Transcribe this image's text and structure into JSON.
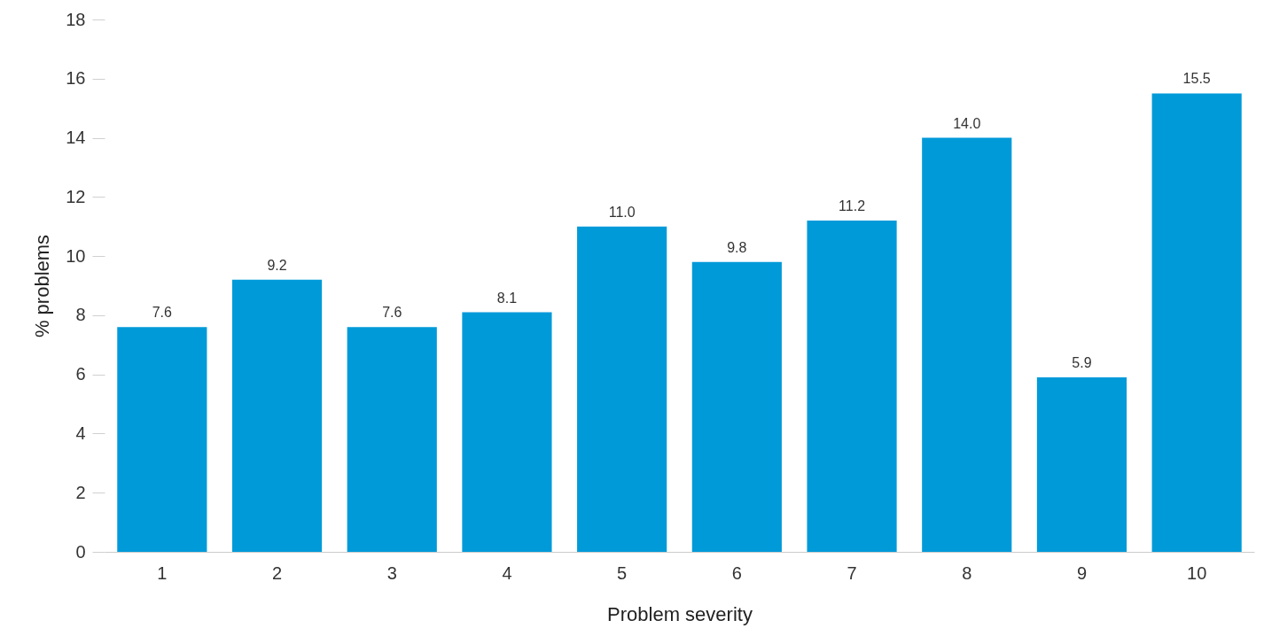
{
  "chart_data": {
    "type": "bar",
    "xlabel": "Problem severity",
    "ylabel": "% problems",
    "categories": [
      "1",
      "2",
      "3",
      "4",
      "5",
      "6",
      "7",
      "8",
      "9",
      "10"
    ],
    "values": [
      7.6,
      9.2,
      7.6,
      8.1,
      11.0,
      9.8,
      11.2,
      14.0,
      5.9,
      15.5
    ],
    "value_labels": [
      "7.6",
      "9.2",
      "7.6",
      "8.1",
      "11.0",
      "9.8",
      "11.2",
      "14.0",
      "5.9",
      "15.5"
    ],
    "color": "#009ad9",
    "ylim": [
      0,
      18
    ],
    "yticks": [
      0,
      2,
      4,
      6,
      8,
      10,
      12,
      14,
      16,
      18
    ],
    "grid": false
  }
}
